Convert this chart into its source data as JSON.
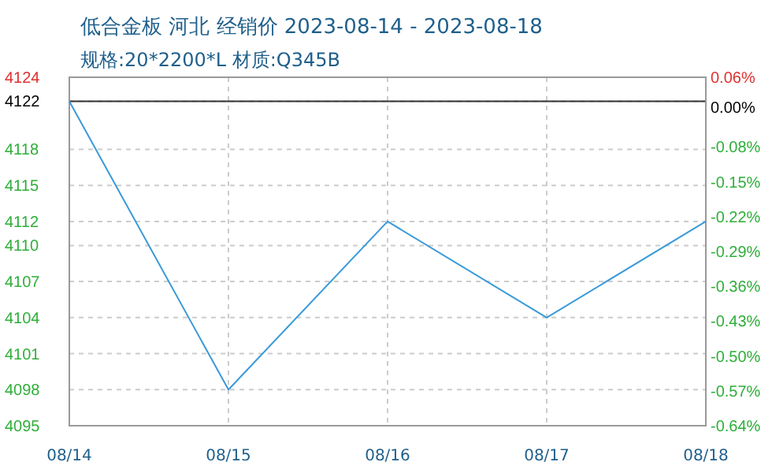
{
  "chart_data": {
    "type": "line",
    "title": "低合金板 河北 经销价 2023-08-14 - 2023-08-18",
    "subtitle": "规格:20*2200*L 材质:Q345B",
    "categories": [
      "08/14",
      "08/15",
      "08/16",
      "08/17",
      "08/18"
    ],
    "series": [
      {
        "color": "#3a9ad9",
        "values": [
          4122,
          4098,
          4112,
          4104,
          4112
        ]
      }
    ],
    "ylim": [
      4095,
      4124
    ],
    "yticks": [
      4124,
      4122,
      4118,
      4115,
      4112,
      4110,
      4107,
      4104,
      4101,
      4098,
      4095
    ],
    "y2lim": [
      -0.64,
      0.06
    ],
    "y2ticks": [
      {
        "value": 0.06,
        "label": "0.06%"
      },
      {
        "value": 0,
        "label": "0.00%"
      },
      {
        "value": -0.08,
        "label": "-0.08%"
      },
      {
        "value": -0.15,
        "label": "-0.15%"
      },
      {
        "value": -0.22,
        "label": "-0.22%"
      },
      {
        "value": -0.29,
        "label": "-0.29%"
      },
      {
        "value": -0.36,
        "label": "-0.36%"
      },
      {
        "value": -0.43,
        "label": "-0.43%"
      },
      {
        "value": -0.5,
        "label": "-0.50%"
      },
      {
        "value": -0.57,
        "label": "-0.57%"
      },
      {
        "value": -0.64,
        "label": "-0.64%"
      }
    ],
    "ref_lines": [
      {
        "axis": "y",
        "value": 4122,
        "color": "#333333"
      }
    ],
    "grid": true,
    "line_style": "solid",
    "marker": "none"
  }
}
